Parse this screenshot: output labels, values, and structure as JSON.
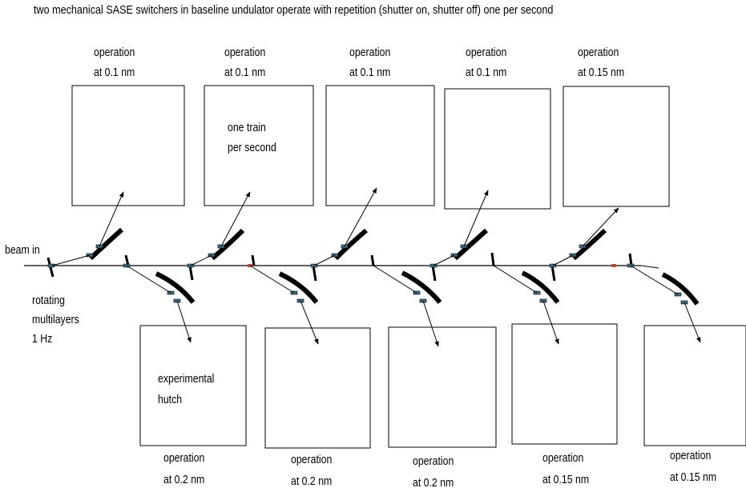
{
  "caption": "two mechanical SASE switchers in baseline undulator operate with repetition (shutter on, shutter off) one per second",
  "beam_label": "beam in",
  "rotating_label": [
    "rotating",
    "multilayers",
    "1 Hz"
  ],
  "top_hutches": [
    {
      "line1": "operation",
      "line2": "at 0.1 nm",
      "note": [
        "",
        ""
      ]
    },
    {
      "line1": "operation",
      "line2": "at 0.1 nm",
      "note": [
        "one train",
        "per second"
      ]
    },
    {
      "line1": "operation",
      "line2": "at 0.1 nm",
      "note": [
        "",
        ""
      ]
    },
    {
      "line1": "operation",
      "line2": "at 0.1 nm",
      "note": [
        "",
        ""
      ]
    },
    {
      "line1": "operation",
      "line2": "at 0.15 nm",
      "note": [
        "",
        ""
      ]
    }
  ],
  "bottom_hutches": [
    {
      "line1": "operation",
      "line2": "at 0.2 nm",
      "note": [
        "experimental",
        "hutch"
      ]
    },
    {
      "line1": "operation",
      "line2": "at 0.2 nm",
      "note": [
        "",
        ""
      ]
    },
    {
      "line1": "operation",
      "line2": "at 0.2 nm",
      "note": [
        "",
        ""
      ]
    },
    {
      "line1": "operation",
      "line2": "at 0.15 nm",
      "note": [
        "",
        ""
      ]
    },
    {
      "line1": "operation",
      "line2": "at 0.15 nm",
      "note": [
        "",
        ""
      ]
    }
  ],
  "colors": {
    "line": "#000000",
    "mirror_pad": "#3d6f86",
    "marker": "#d04030"
  }
}
